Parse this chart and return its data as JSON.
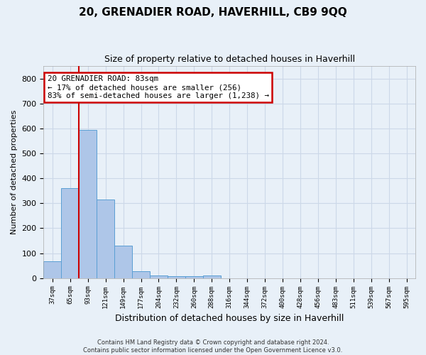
{
  "title": "20, GRENADIER ROAD, HAVERHILL, CB9 9QQ",
  "subtitle": "Size of property relative to detached houses in Haverhill",
  "xlabel": "Distribution of detached houses by size in Haverhill",
  "ylabel": "Number of detached properties",
  "bar_labels": [
    "37sqm",
    "65sqm",
    "93sqm",
    "121sqm",
    "149sqm",
    "177sqm",
    "204sqm",
    "232sqm",
    "260sqm",
    "288sqm",
    "316sqm",
    "344sqm",
    "372sqm",
    "400sqm",
    "428sqm",
    "456sqm",
    "483sqm",
    "511sqm",
    "539sqm",
    "567sqm",
    "595sqm"
  ],
  "bar_values": [
    68,
    360,
    594,
    315,
    130,
    27,
    10,
    8,
    8,
    10,
    0,
    0,
    0,
    0,
    0,
    0,
    0,
    0,
    0,
    0,
    0
  ],
  "bar_color": "#aec6e8",
  "bar_edge_color": "#5a9fd4",
  "ylim": [
    0,
    850
  ],
  "yticks": [
    0,
    100,
    200,
    300,
    400,
    500,
    600,
    700,
    800
  ],
  "vline_x": 1.5,
  "annotation_title": "20 GRENADIER ROAD: 83sqm",
  "annotation_line1": "← 17% of detached houses are smaller (256)",
  "annotation_line2": "83% of semi-detached houses are larger (1,238) →",
  "annotation_box_color": "#ffffff",
  "annotation_box_edge": "#cc0000",
  "vline_color": "#cc0000",
  "grid_color": "#ccd8e8",
  "bg_color": "#e8f0f8",
  "footer1": "Contains HM Land Registry data © Crown copyright and database right 2024.",
  "footer2": "Contains public sector information licensed under the Open Government Licence v3.0."
}
